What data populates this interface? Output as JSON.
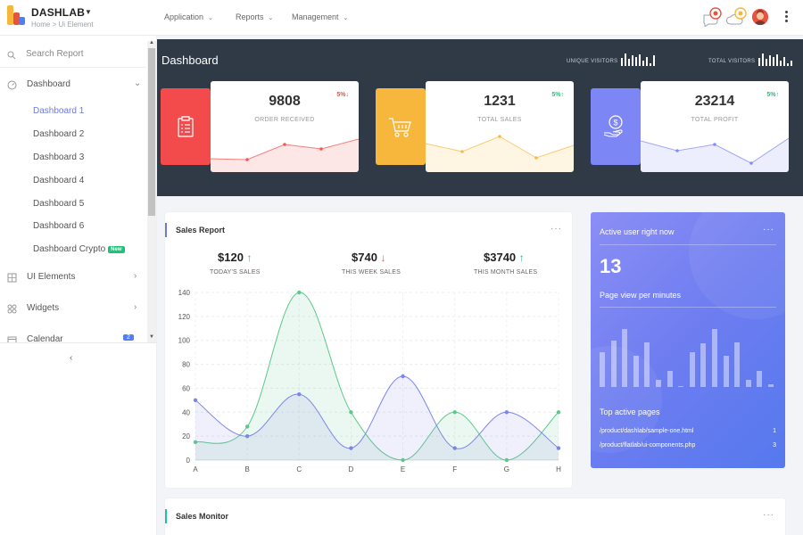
{
  "app": {
    "brand": "DASHLAB",
    "breadcrumb": "Home > Ui Element",
    "colors": {
      "accent": "#6c7ae0",
      "success": "#21c17a",
      "danger": "#e8533f",
      "dark": "#2f3a46"
    }
  },
  "topnav": {
    "items": [
      {
        "label": "Application"
      },
      {
        "label": "Reports"
      },
      {
        "label": "Management"
      }
    ],
    "icons": [
      "chat-alert-icon",
      "cloud-alert-icon",
      "user-avatar",
      "more-vertical-icon"
    ]
  },
  "sidebar": {
    "search_placeholder": "Search Report",
    "dashboard_label": "Dashboard",
    "dashboard_items": [
      {
        "label": "Dashboard 1",
        "active": true
      },
      {
        "label": "Dashboard 2"
      },
      {
        "label": "Dashboard 3"
      },
      {
        "label": "Dashboard 4"
      },
      {
        "label": "Dashboard 5"
      },
      {
        "label": "Dashboard 6"
      },
      {
        "label": "Dashboard Crypto",
        "badge": "New"
      }
    ],
    "ui_elements_label": "UI Elements",
    "widgets_label": "Widgets",
    "calendar_label": "Calendar",
    "calendar_badge": "2",
    "collapse_icon": "chevron-left-icon"
  },
  "banner": {
    "title": "Dashboard",
    "unique_visitors_label": "UNIQUE VISITORS",
    "total_visitors_label": "TOTAL VISITORS"
  },
  "stats": [
    {
      "value": "9808",
      "label": "ORDER RECEIVED",
      "change": "5%",
      "direction": "down",
      "color": "#f34b4b",
      "icon": "clipboard-icon",
      "spark": [
        0.3,
        0.28,
        0.62,
        0.52,
        0.74
      ]
    },
    {
      "value": "1231",
      "label": "TOTAL SALES",
      "change": "5%",
      "direction": "up",
      "color": "#f6b73c",
      "icon": "cart-icon",
      "spark": [
        0.64,
        0.46,
        0.8,
        0.32,
        0.6
      ]
    },
    {
      "value": "23214",
      "label": "TOTAL PROFIT",
      "change": "5%",
      "direction": "up",
      "color": "#7c86f4",
      "icon": "money-hand-icon",
      "spark": [
        0.7,
        0.48,
        0.62,
        0.2,
        0.76
      ]
    }
  ],
  "sales_report": {
    "title": "Sales Report",
    "kpis": [
      {
        "value": "$120",
        "label": "TODAY'S SALES",
        "direction": "up"
      },
      {
        "value": "$740",
        "label": "THIS WEEK SALES",
        "direction": "down"
      },
      {
        "value": "$3740",
        "label": "THIS MONTH SALES",
        "direction": "up"
      }
    ]
  },
  "chart_data": {
    "type": "area",
    "categories": [
      "A",
      "B",
      "C",
      "D",
      "E",
      "F",
      "G",
      "H"
    ],
    "series": [
      {
        "values": [
          15,
          28,
          140,
          40,
          0,
          40,
          0,
          40
        ],
        "color": "#5cc98a"
      },
      {
        "values": [
          50,
          20,
          55,
          10,
          70,
          10,
          40,
          10
        ],
        "color": "#7c86e8"
      }
    ],
    "ylim": [
      0,
      140
    ],
    "yticks": [
      0,
      20,
      40,
      60,
      80,
      100,
      120,
      140
    ],
    "grid": true
  },
  "active_users": {
    "title": "Active user right now",
    "count": "13",
    "subtitle": "Page view per minutes",
    "bars": [
      0.58,
      0.76,
      0.95,
      0.52,
      0.74,
      0.12,
      0.26,
      0,
      0.58,
      0.72,
      0.95,
      0.52,
      0.74,
      0.12,
      0.26,
      0.04
    ],
    "pages_title": "Top active pages",
    "pages": [
      {
        "path": "/product/dashlab/sample-one.html",
        "count": "1"
      },
      {
        "path": "/product/flatlab/ui-components.php",
        "count": "3"
      }
    ]
  },
  "sales_monitor": {
    "title": "Sales Monitor"
  }
}
